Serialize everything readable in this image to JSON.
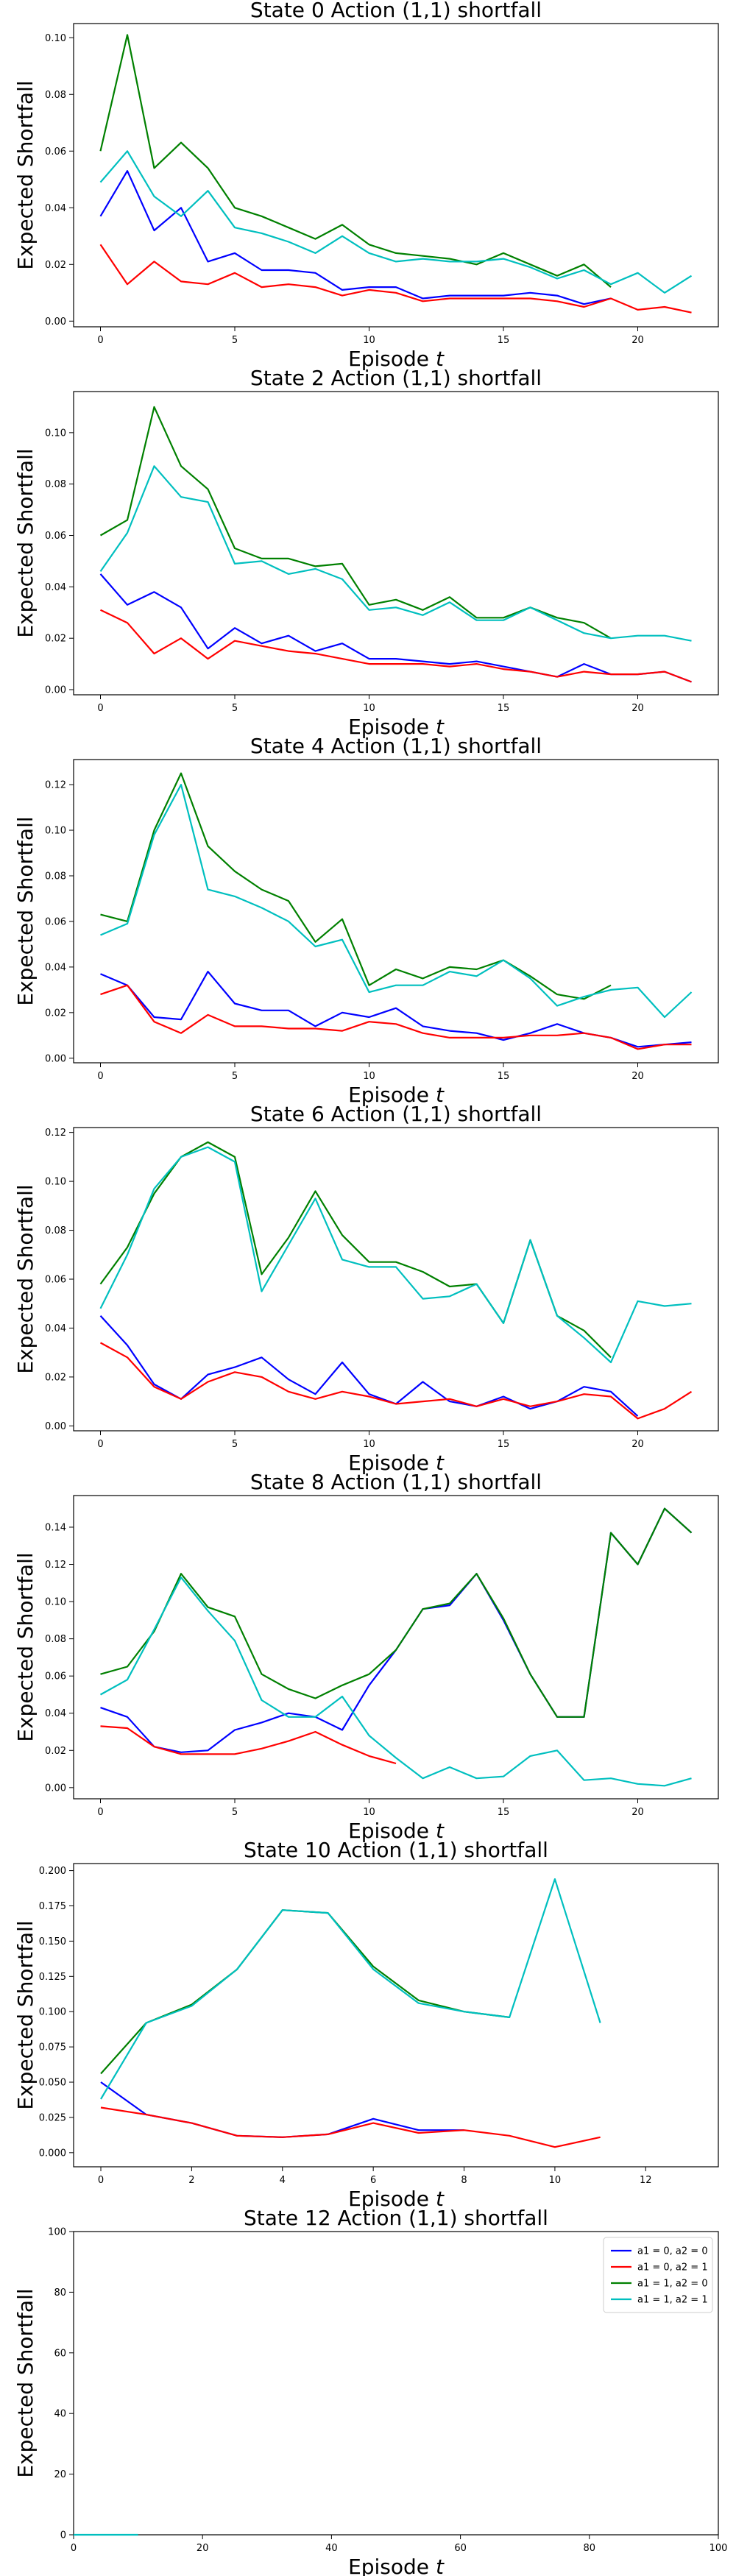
{
  "chart_data": [
    {
      "type": "line",
      "title": "State 0 Action (1,1) shortfall",
      "xlabel": "Episode $t$",
      "ylabel": "Expected Shortfall",
      "xlim": [
        -1,
        23
      ],
      "ylim": [
        -0.002,
        0.105
      ],
      "xticks": [
        0,
        5,
        10,
        15,
        20
      ],
      "yticks": [
        0.0,
        0.02,
        0.04,
        0.06,
        0.08,
        0.1
      ],
      "ytick_labels": [
        "0.00",
        "0.02",
        "0.04",
        "0.06",
        "0.08",
        "0.10"
      ],
      "series": [
        {
          "color": "#0000ff",
          "values": [
            0.037,
            0.053,
            0.032,
            0.04,
            0.021,
            0.024,
            0.018,
            0.018,
            0.017,
            0.011,
            0.012,
            0.012,
            0.008,
            0.009,
            0.009,
            0.009,
            0.01,
            0.009,
            0.006,
            0.008
          ]
        },
        {
          "color": "#ff0000",
          "values": [
            0.027,
            0.013,
            0.021,
            0.014,
            0.013,
            0.017,
            0.012,
            0.013,
            0.012,
            0.009,
            0.011,
            0.01,
            0.007,
            0.008,
            0.008,
            0.008,
            0.008,
            0.007,
            0.005,
            0.008,
            0.004,
            0.005,
            0.003
          ]
        },
        {
          "color": "#008000",
          "values": [
            0.06,
            0.101,
            0.054,
            0.063,
            0.054,
            0.04,
            0.037,
            0.033,
            0.029,
            0.034,
            0.027,
            0.024,
            0.023,
            0.022,
            0.02,
            0.024,
            0.02,
            0.016,
            0.02,
            0.012
          ]
        },
        {
          "color": "#00bfbf",
          "values": [
            0.049,
            0.06,
            0.044,
            0.037,
            0.046,
            0.033,
            0.031,
            0.028,
            0.024,
            0.03,
            0.024,
            0.021,
            0.022,
            0.021,
            0.021,
            0.022,
            0.019,
            0.015,
            0.018,
            0.013,
            0.017,
            0.01,
            0.016
          ]
        }
      ]
    },
    {
      "type": "line",
      "title": "State 2 Action (1,1) shortfall",
      "xlabel": "Episode $t$",
      "ylabel": "Expected Shortfall",
      "xlim": [
        -1,
        23
      ],
      "ylim": [
        -0.002,
        0.116
      ],
      "xticks": [
        0,
        5,
        10,
        15,
        20
      ],
      "yticks": [
        0.0,
        0.02,
        0.04,
        0.06,
        0.08,
        0.1
      ],
      "ytick_labels": [
        "0.00",
        "0.02",
        "0.04",
        "0.06",
        "0.08",
        "0.10"
      ],
      "series": [
        {
          "color": "#0000ff",
          "values": [
            0.045,
            0.033,
            0.038,
            0.032,
            0.016,
            0.024,
            0.018,
            0.021,
            0.015,
            0.018,
            0.012,
            0.012,
            0.011,
            0.01,
            0.011,
            0.009,
            0.007,
            0.005,
            0.01,
            0.006,
            0.006,
            0.007,
            0.003
          ]
        },
        {
          "color": "#ff0000",
          "values": [
            0.031,
            0.026,
            0.014,
            0.02,
            0.012,
            0.019,
            0.017,
            0.015,
            0.014,
            0.012,
            0.01,
            0.01,
            0.01,
            0.009,
            0.01,
            0.008,
            0.007,
            0.005,
            0.007,
            0.006,
            0.006,
            0.007,
            0.003
          ]
        },
        {
          "color": "#008000",
          "values": [
            0.06,
            0.066,
            0.11,
            0.087,
            0.078,
            0.055,
            0.051,
            0.051,
            0.048,
            0.049,
            0.033,
            0.035,
            0.031,
            0.036,
            0.028,
            0.028,
            0.032,
            0.028,
            0.026,
            0.02
          ]
        },
        {
          "color": "#00bfbf",
          "values": [
            0.046,
            0.061,
            0.087,
            0.075,
            0.073,
            0.049,
            0.05,
            0.045,
            0.047,
            0.043,
            0.031,
            0.032,
            0.029,
            0.034,
            0.027,
            0.027,
            0.032,
            0.027,
            0.022,
            0.02,
            0.021,
            0.021,
            0.019
          ]
        }
      ]
    },
    {
      "type": "line",
      "title": "State 4 Action (1,1) shortfall",
      "xlabel": "Episode $t$",
      "ylabel": "Expected Shortfall",
      "xlim": [
        -1,
        23
      ],
      "ylim": [
        -0.002,
        0.131
      ],
      "xticks": [
        0,
        5,
        10,
        15,
        20
      ],
      "yticks": [
        0.0,
        0.02,
        0.04,
        0.06,
        0.08,
        0.1,
        0.12
      ],
      "ytick_labels": [
        "0.00",
        "0.02",
        "0.04",
        "0.06",
        "0.08",
        "0.10",
        "0.12"
      ],
      "series": [
        {
          "color": "#0000ff",
          "values": [
            0.037,
            0.032,
            0.018,
            0.017,
            0.038,
            0.024,
            0.021,
            0.021,
            0.014,
            0.02,
            0.018,
            0.022,
            0.014,
            0.012,
            0.011,
            0.008,
            0.011,
            0.015,
            0.011,
            0.009,
            0.005,
            0.006,
            0.007
          ]
        },
        {
          "color": "#ff0000",
          "values": [
            0.028,
            0.032,
            0.016,
            0.011,
            0.019,
            0.014,
            0.014,
            0.013,
            0.013,
            0.012,
            0.016,
            0.015,
            0.011,
            0.009,
            0.009,
            0.009,
            0.01,
            0.01,
            0.011,
            0.009,
            0.004,
            0.006,
            0.006
          ]
        },
        {
          "color": "#008000",
          "values": [
            0.063,
            0.06,
            0.1,
            0.125,
            0.093,
            0.082,
            0.074,
            0.069,
            0.051,
            0.061,
            0.032,
            0.039,
            0.035,
            0.04,
            0.039,
            0.043,
            0.036,
            0.028,
            0.026,
            0.032
          ]
        },
        {
          "color": "#00bfbf",
          "values": [
            0.054,
            0.059,
            0.098,
            0.12,
            0.074,
            0.071,
            0.066,
            0.06,
            0.049,
            0.052,
            0.029,
            0.032,
            0.032,
            0.038,
            0.036,
            0.043,
            0.035,
            0.023,
            0.027,
            0.03,
            0.031,
            0.018,
            0.029
          ]
        }
      ]
    },
    {
      "type": "line",
      "title": "State 6 Action (1,1) shortfall",
      "xlabel": "Episode $t$",
      "ylabel": "Expected Shortfall",
      "xlim": [
        -1,
        23
      ],
      "ylim": [
        -0.002,
        0.122
      ],
      "xticks": [
        0,
        5,
        10,
        15,
        20
      ],
      "yticks": [
        0.0,
        0.02,
        0.04,
        0.06,
        0.08,
        0.1,
        0.12
      ],
      "ytick_labels": [
        "0.00",
        "0.02",
        "0.04",
        "0.06",
        "0.08",
        "0.10",
        "0.12"
      ],
      "series": [
        {
          "color": "#0000ff",
          "values": [
            0.045,
            0.033,
            0.017,
            0.011,
            0.021,
            0.024,
            0.028,
            0.019,
            0.013,
            0.026,
            0.013,
            0.009,
            0.018,
            0.01,
            0.008,
            0.012,
            0.007,
            0.01,
            0.016,
            0.014,
            0.004
          ]
        },
        {
          "color": "#ff0000",
          "values": [
            0.034,
            0.028,
            0.016,
            0.011,
            0.018,
            0.022,
            0.02,
            0.014,
            0.011,
            0.014,
            0.012,
            0.009,
            0.01,
            0.011,
            0.008,
            0.011,
            0.008,
            0.01,
            0.013,
            0.012,
            0.003,
            0.007,
            0.014
          ]
        },
        {
          "color": "#008000",
          "values": [
            0.058,
            0.073,
            0.095,
            0.11,
            0.116,
            0.11,
            0.062,
            0.077,
            0.096,
            0.078,
            0.067,
            0.067,
            0.063,
            0.057,
            0.058,
            0.042,
            0.076,
            0.045,
            0.039,
            0.028
          ]
        },
        {
          "color": "#00bfbf",
          "values": [
            0.048,
            0.07,
            0.097,
            0.11,
            0.114,
            0.108,
            0.055,
            0.074,
            0.093,
            0.068,
            0.065,
            0.065,
            0.052,
            0.053,
            0.058,
            0.042,
            0.076,
            0.045,
            0.036,
            0.026,
            0.051,
            0.049,
            0.05
          ]
        }
      ]
    },
    {
      "type": "line",
      "title": "State 8 Action (1,1) shortfall",
      "xlabel": "Episode $t$",
      "ylabel": "Expected Shortfall",
      "xlim": [
        -1,
        23
      ],
      "ylim": [
        -0.006,
        0.157
      ],
      "xticks": [
        0,
        5,
        10,
        15,
        20
      ],
      "yticks": [
        0.0,
        0.02,
        0.04,
        0.06,
        0.08,
        0.1,
        0.12,
        0.14
      ],
      "ytick_labels": [
        "0.00",
        "0.02",
        "0.04",
        "0.06",
        "0.08",
        "0.10",
        "0.12",
        "0.14"
      ],
      "series": [
        {
          "color": "#0000ff",
          "values": [
            0.043,
            0.038,
            0.022,
            0.019,
            0.02,
            0.031,
            0.035,
            0.04,
            0.038,
            0.031,
            0.055,
            0.074,
            0.096,
            0.098,
            0.115,
            0.09,
            0.061,
            0.038,
            0.038,
            0.137,
            0.12,
            0.15,
            0.137
          ]
        },
        {
          "color": "#ff0000",
          "values": [
            0.033,
            0.032,
            0.022,
            0.018,
            0.018,
            0.018,
            0.021,
            0.025,
            0.03,
            0.023,
            0.017,
            0.013
          ]
        },
        {
          "color": "#008000",
          "values": [
            0.061,
            0.065,
            0.084,
            0.115,
            0.097,
            0.092,
            0.061,
            0.053,
            0.048,
            0.055,
            0.061,
            0.074,
            0.096,
            0.099,
            0.115,
            0.091,
            0.061,
            0.038,
            0.038,
            0.137,
            0.12,
            0.15,
            0.137
          ]
        },
        {
          "color": "#00bfbf",
          "values": [
            0.05,
            0.058,
            0.085,
            0.113,
            0.095,
            0.079,
            0.047,
            0.038,
            0.038,
            0.049,
            0.028,
            0.016,
            0.005,
            0.011,
            0.005,
            0.006,
            0.017,
            0.02,
            0.004,
            0.005,
            0.002,
            0.001,
            0.005
          ]
        }
      ]
    },
    {
      "type": "line",
      "title": "State 10 Action (1,1) shortfall",
      "xlabel": "Episode $t$",
      "ylabel": "Expected Shortfall",
      "xlim": [
        -0.6,
        13.6
      ],
      "ylim": [
        -0.01,
        0.205
      ],
      "xticks": [
        0,
        2,
        4,
        6,
        8,
        10,
        12
      ],
      "yticks": [
        0.0,
        0.025,
        0.05,
        0.075,
        0.1,
        0.125,
        0.15,
        0.175,
        0.2
      ],
      "ytick_labels": [
        "0.000",
        "0.025",
        "0.050",
        "0.075",
        "0.100",
        "0.125",
        "0.150",
        "0.175",
        "0.200"
      ],
      "series": [
        {
          "color": "#0000ff",
          "values": [
            0.05,
            0.027,
            0.021,
            0.012,
            0.011,
            0.013,
            0.024,
            0.016,
            0.016
          ]
        },
        {
          "color": "#ff0000",
          "values": [
            0.032,
            0.027,
            0.021,
            0.012,
            0.011,
            0.013,
            0.021,
            0.014,
            0.016,
            0.012,
            0.004,
            0.011
          ]
        },
        {
          "color": "#008000",
          "values": [
            0.056,
            0.092,
            0.105,
            0.13,
            0.172,
            0.17,
            0.132,
            0.108,
            0.1,
            0.096
          ]
        },
        {
          "color": "#00bfbf",
          "values": [
            0.038,
            0.092,
            0.104,
            0.13,
            0.172,
            0.17,
            0.13,
            0.106,
            0.1,
            0.096,
            0.194,
            0.092
          ]
        }
      ]
    },
    {
      "type": "line",
      "title": "State 12 Action (1,1) shortfall",
      "xlabel": "Episode $t$",
      "ylabel": "Expected Shortfall",
      "xlim": [
        0,
        100
      ],
      "ylim": [
        0,
        100
      ],
      "xticks": [
        0,
        20,
        40,
        60,
        80,
        100
      ],
      "yticks": [
        0,
        20,
        40,
        60,
        80,
        100
      ],
      "ytick_labels": [
        "0",
        "20",
        "40",
        "60",
        "80",
        "100"
      ],
      "legend": {
        "placement": "top-right",
        "entries": [
          {
            "label": "a1 = 0, a2 = 0",
            "color": "#0000ff"
          },
          {
            "label": "a1 = 0, a2 = 1",
            "color": "#ff0000"
          },
          {
            "label": "a1 = 1, a2 = 0",
            "color": "#008000"
          },
          {
            "label": "a1 = 1, a2 = 1",
            "color": "#00bfbf"
          }
        ]
      },
      "series": [
        {
          "color": "#00bfbf",
          "values": [
            0,
            0,
            0,
            0,
            0,
            0,
            0,
            0,
            0,
            0,
            0
          ]
        }
      ]
    }
  ]
}
